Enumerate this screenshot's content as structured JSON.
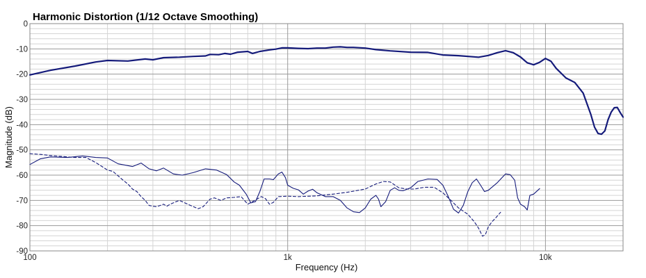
{
  "chart_data": {
    "type": "line",
    "title": "Harmonic Distortion (1/12 Octave Smoothing)",
    "xlabel": "Frequency (Hz)",
    "ylabel": "Magnitude (dB)",
    "x_scale": "log",
    "xlim": [
      100,
      20000
    ],
    "ylim": [
      -90,
      0
    ],
    "x_tick_labels": [
      {
        "value": 100,
        "label": "100"
      },
      {
        "value": 1000,
        "label": "1k"
      },
      {
        "value": 10000,
        "label": "10k"
      }
    ],
    "y_ticks": [
      0,
      -10,
      -20,
      -30,
      -40,
      -50,
      -60,
      -70,
      -80,
      -90
    ],
    "y_tick_labels": [
      "0",
      "-10",
      "-20",
      "-30",
      "-40",
      "-50",
      "-60",
      "-70",
      "-80",
      "-90"
    ],
    "grid": true,
    "colors": {
      "series": "#141a7a",
      "grid_major": "#9a9a9a",
      "grid_minor": "#d4d4d4",
      "frame": "#8a8a8a"
    },
    "series": [
      {
        "style": "solid-thick",
        "points": [
          [
            100,
            -20.3
          ],
          [
            120,
            -18.5
          ],
          [
            150,
            -16.8
          ],
          [
            180,
            -15.2
          ],
          [
            200,
            -14.6
          ],
          [
            240,
            -14.8
          ],
          [
            280,
            -14.0
          ],
          [
            300,
            -14.3
          ],
          [
            330,
            -13.5
          ],
          [
            380,
            -13.3
          ],
          [
            430,
            -13.0
          ],
          [
            480,
            -12.8
          ],
          [
            500,
            -12.2
          ],
          [
            540,
            -12.3
          ],
          [
            570,
            -11.8
          ],
          [
            600,
            -12.1
          ],
          [
            640,
            -11.3
          ],
          [
            700,
            -11.0
          ],
          [
            730,
            -11.8
          ],
          [
            780,
            -11.0
          ],
          [
            850,
            -10.4
          ],
          [
            900,
            -10.1
          ],
          [
            950,
            -9.6
          ],
          [
            1000,
            -9.6
          ],
          [
            1100,
            -9.8
          ],
          [
            1200,
            -9.9
          ],
          [
            1300,
            -9.7
          ],
          [
            1400,
            -9.7
          ],
          [
            1500,
            -9.3
          ],
          [
            1600,
            -9.2
          ],
          [
            1700,
            -9.4
          ],
          [
            1800,
            -9.4
          ],
          [
            2000,
            -9.7
          ],
          [
            2200,
            -10.3
          ],
          [
            2500,
            -10.8
          ],
          [
            3000,
            -11.3
          ],
          [
            3500,
            -11.4
          ],
          [
            4000,
            -12.4
          ],
          [
            4600,
            -12.7
          ],
          [
            5500,
            -13.3
          ],
          [
            6000,
            -12.6
          ],
          [
            6500,
            -11.5
          ],
          [
            7000,
            -10.7
          ],
          [
            7500,
            -11.5
          ],
          [
            8000,
            -13.2
          ],
          [
            8500,
            -15.5
          ],
          [
            9000,
            -16.3
          ],
          [
            9500,
            -15.3
          ],
          [
            10000,
            -13.8
          ],
          [
            10500,
            -14.9
          ],
          [
            11000,
            -17.7
          ],
          [
            12000,
            -21.5
          ],
          [
            13000,
            -23.3
          ],
          [
            14000,
            -27.5
          ],
          [
            15000,
            -36.0
          ],
          [
            15500,
            -41.0
          ],
          [
            16000,
            -43.5
          ],
          [
            16500,
            -43.8
          ],
          [
            17000,
            -42.5
          ],
          [
            17500,
            -38.0
          ],
          [
            18000,
            -35.0
          ],
          [
            18500,
            -33.3
          ],
          [
            19000,
            -33.2
          ],
          [
            19500,
            -35.2
          ],
          [
            20000,
            -37.0
          ]
        ]
      },
      {
        "style": "solid-thin",
        "points": [
          [
            100,
            -55.8
          ],
          [
            110,
            -53.5
          ],
          [
            120,
            -52.8
          ],
          [
            140,
            -53.0
          ],
          [
            160,
            -52.4
          ],
          [
            180,
            -53.0
          ],
          [
            200,
            -53.2
          ],
          [
            220,
            -55.5
          ],
          [
            250,
            -56.6
          ],
          [
            270,
            -55.2
          ],
          [
            290,
            -57.5
          ],
          [
            310,
            -58.3
          ],
          [
            330,
            -57.2
          ],
          [
            360,
            -59.5
          ],
          [
            390,
            -60.0
          ],
          [
            430,
            -59.0
          ],
          [
            480,
            -57.5
          ],
          [
            530,
            -58.0
          ],
          [
            580,
            -59.8
          ],
          [
            620,
            -62.7
          ],
          [
            650,
            -64.0
          ],
          [
            690,
            -67.5
          ],
          [
            720,
            -71.0
          ],
          [
            750,
            -70.5
          ],
          [
            780,
            -66.5
          ],
          [
            810,
            -61.5
          ],
          [
            850,
            -61.5
          ],
          [
            880,
            -61.8
          ],
          [
            920,
            -59.5
          ],
          [
            950,
            -58.8
          ],
          [
            980,
            -61.0
          ],
          [
            1000,
            -64.0
          ],
          [
            1050,
            -65.2
          ],
          [
            1100,
            -65.8
          ],
          [
            1150,
            -67.5
          ],
          [
            1200,
            -66.3
          ],
          [
            1250,
            -65.6
          ],
          [
            1300,
            -67.0
          ],
          [
            1400,
            -68.5
          ],
          [
            1500,
            -68.5
          ],
          [
            1600,
            -70.0
          ],
          [
            1700,
            -73.0
          ],
          [
            1800,
            -74.5
          ],
          [
            1900,
            -74.8
          ],
          [
            2000,
            -73.0
          ],
          [
            2100,
            -69.5
          ],
          [
            2200,
            -68.0
          ],
          [
            2250,
            -69.5
          ],
          [
            2300,
            -72.5
          ],
          [
            2400,
            -70.5
          ],
          [
            2500,
            -66.0
          ],
          [
            2600,
            -65.0
          ],
          [
            2700,
            -66.0
          ],
          [
            2800,
            -66.2
          ],
          [
            3000,
            -65.0
          ],
          [
            3200,
            -62.5
          ],
          [
            3500,
            -61.5
          ],
          [
            3800,
            -61.7
          ],
          [
            4000,
            -64.0
          ],
          [
            4200,
            -68.5
          ],
          [
            4400,
            -73.5
          ],
          [
            4600,
            -75.0
          ],
          [
            4800,
            -72.0
          ],
          [
            5000,
            -66.5
          ],
          [
            5200,
            -63.0
          ],
          [
            5400,
            -61.5
          ],
          [
            5600,
            -64.0
          ],
          [
            5800,
            -66.5
          ],
          [
            6000,
            -66.0
          ],
          [
            6500,
            -63.0
          ],
          [
            7000,
            -59.5
          ],
          [
            7300,
            -59.8
          ],
          [
            7600,
            -62.0
          ],
          [
            7800,
            -69.0
          ],
          [
            8000,
            -71.5
          ],
          [
            8300,
            -72.5
          ],
          [
            8500,
            -73.8
          ],
          [
            8700,
            -68.0
          ],
          [
            9000,
            -67.5
          ],
          [
            9500,
            -65.3
          ]
        ]
      },
      {
        "style": "dashed",
        "points": [
          [
            100,
            -51.5
          ],
          [
            110,
            -51.8
          ],
          [
            120,
            -52.2
          ],
          [
            130,
            -52.5
          ],
          [
            140,
            -52.8
          ],
          [
            150,
            -53.0
          ],
          [
            165,
            -53.0
          ],
          [
            180,
            -55.0
          ],
          [
            200,
            -58.0
          ],
          [
            210,
            -58.5
          ],
          [
            230,
            -62.0
          ],
          [
            240,
            -63.5
          ],
          [
            250,
            -65.5
          ],
          [
            260,
            -66.5
          ],
          [
            270,
            -68.5
          ],
          [
            280,
            -70.0
          ],
          [
            290,
            -72.0
          ],
          [
            300,
            -72.3
          ],
          [
            310,
            -72.5
          ],
          [
            320,
            -72.0
          ],
          [
            330,
            -71.5
          ],
          [
            340,
            -72.3
          ],
          [
            350,
            -71.5
          ],
          [
            380,
            -70.0
          ],
          [
            420,
            -72.0
          ],
          [
            450,
            -73.3
          ],
          [
            470,
            -72.5
          ],
          [
            500,
            -69.5
          ],
          [
            520,
            -69.0
          ],
          [
            550,
            -70.0
          ],
          [
            580,
            -69.0
          ],
          [
            620,
            -68.8
          ],
          [
            660,
            -68.5
          ],
          [
            700,
            -71.5
          ],
          [
            730,
            -70.5
          ],
          [
            760,
            -69.5
          ],
          [
            790,
            -68.5
          ],
          [
            820,
            -69.3
          ],
          [
            850,
            -71.5
          ],
          [
            880,
            -70.8
          ],
          [
            920,
            -68.5
          ],
          [
            1000,
            -68.3
          ],
          [
            1100,
            -68.5
          ],
          [
            1300,
            -68.2
          ],
          [
            1500,
            -67.5
          ],
          [
            1700,
            -66.8
          ],
          [
            2000,
            -65.5
          ],
          [
            2200,
            -63.5
          ],
          [
            2350,
            -62.5
          ],
          [
            2500,
            -62.7
          ],
          [
            2700,
            -65.0
          ],
          [
            2900,
            -65.5
          ],
          [
            3100,
            -65.5
          ],
          [
            3400,
            -64.8
          ],
          [
            3700,
            -64.8
          ],
          [
            4000,
            -67.0
          ],
          [
            4300,
            -70.0
          ],
          [
            4600,
            -73.0
          ],
          [
            5000,
            -75.5
          ],
          [
            5300,
            -78.5
          ],
          [
            5500,
            -81.0
          ],
          [
            5700,
            -84.2
          ],
          [
            5850,
            -83.5
          ],
          [
            6000,
            -80.5
          ],
          [
            6200,
            -78.5
          ],
          [
            6400,
            -77.0
          ],
          [
            6700,
            -74.7
          ]
        ]
      }
    ]
  }
}
